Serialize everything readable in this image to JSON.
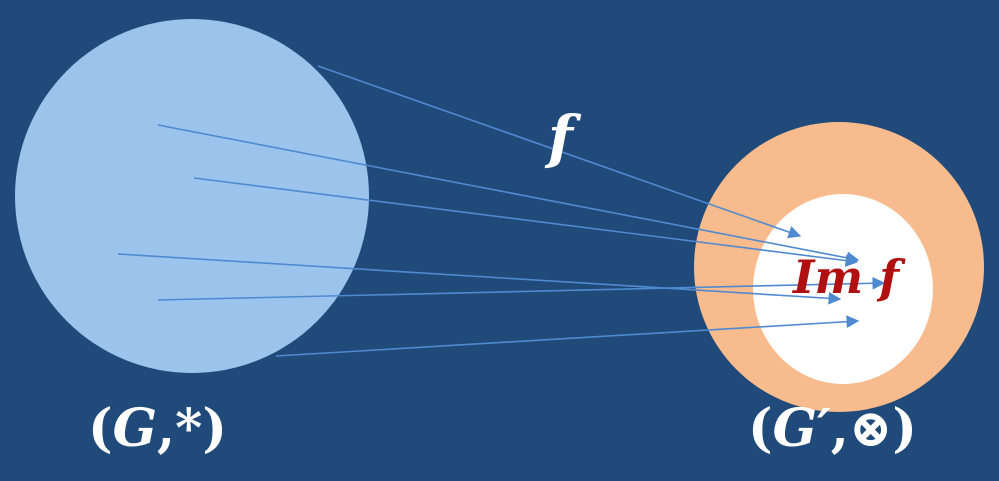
{
  "domain": {
    "label_open": "(",
    "label_set": "G",
    "label_sep": ",",
    "label_op": "*",
    "label_close": ")"
  },
  "codomain": {
    "label_open": "(",
    "label_set": "G′",
    "label_sep": ",",
    "label_op": "⊗",
    "label_close": ")"
  },
  "mapping": {
    "label": "f",
    "arrow_count": 6
  },
  "image": {
    "label": "Im f"
  },
  "colors": {
    "background": "#1f4a7a",
    "domain_fill": "#9cc3ec",
    "codomain_fill": "#f8bb8d",
    "image_fill": "#ffffff",
    "arrow": "#4f8ad1",
    "image_text": "#b01010"
  }
}
